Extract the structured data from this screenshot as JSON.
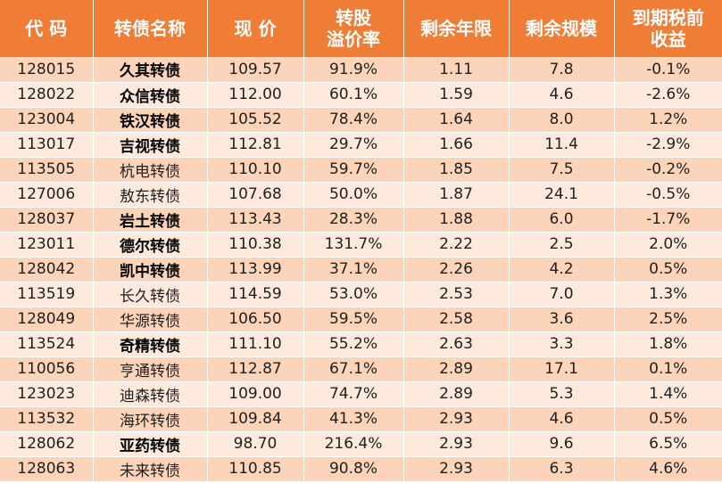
{
  "headers": [
    [
      "代 码"
    ],
    [
      "转债名称"
    ],
    [
      "现 价"
    ],
    [
      "转股",
      "溢价率"
    ],
    [
      "剩余年限"
    ],
    [
      "剩余规模"
    ],
    [
      "到期税前",
      "收益"
    ]
  ],
  "rows": [
    {
      "code": "128015",
      "name": "久其转债",
      "bold": true,
      "price": "109.57",
      "premium": "91.9%",
      "years": "1.11",
      "scale": "7.8",
      "ytm": "-0.1%"
    },
    {
      "code": "128022",
      "name": "众信转债",
      "bold": true,
      "price": "112.00",
      "premium": "60.1%",
      "years": "1.59",
      "scale": "4.6",
      "ytm": "-2.6%"
    },
    {
      "code": "123004",
      "name": "铁汉转债",
      "bold": true,
      "price": "105.52",
      "premium": "78.4%",
      "years": "1.64",
      "scale": "8.0",
      "ytm": "1.2%"
    },
    {
      "code": "113017",
      "name": "吉视转债",
      "bold": true,
      "price": "112.81",
      "premium": "29.7%",
      "years": "1.66",
      "scale": "11.4",
      "ytm": "-2.9%"
    },
    {
      "code": "113505",
      "name": "杭电转债",
      "bold": false,
      "price": "110.10",
      "premium": "59.7%",
      "years": "1.85",
      "scale": "7.5",
      "ytm": "-0.2%"
    },
    {
      "code": "127006",
      "name": "敖东转债",
      "bold": false,
      "price": "107.68",
      "premium": "50.0%",
      "years": "1.87",
      "scale": "24.1",
      "ytm": "-0.5%"
    },
    {
      "code": "128037",
      "name": "岩土转债",
      "bold": true,
      "price": "113.43",
      "premium": "28.3%",
      "years": "1.88",
      "scale": "6.0",
      "ytm": "-1.7%"
    },
    {
      "code": "123011",
      "name": "德尔转债",
      "bold": true,
      "price": "110.38",
      "premium": "131.7%",
      "years": "2.22",
      "scale": "2.5",
      "ytm": "2.0%"
    },
    {
      "code": "128042",
      "name": "凯中转债",
      "bold": true,
      "price": "113.99",
      "premium": "37.1%",
      "years": "2.26",
      "scale": "4.2",
      "ytm": "0.5%"
    },
    {
      "code": "113519",
      "name": "长久转债",
      "bold": false,
      "price": "114.59",
      "premium": "53.0%",
      "years": "2.53",
      "scale": "7.0",
      "ytm": "1.3%"
    },
    {
      "code": "128049",
      "name": "华源转债",
      "bold": false,
      "price": "106.50",
      "premium": "59.5%",
      "years": "2.58",
      "scale": "3.6",
      "ytm": "2.5%"
    },
    {
      "code": "113524",
      "name": "奇精转债",
      "bold": true,
      "price": "111.10",
      "premium": "55.2%",
      "years": "2.63",
      "scale": "3.3",
      "ytm": "1.8%"
    },
    {
      "code": "110056",
      "name": "亨通转债",
      "bold": false,
      "price": "112.87",
      "premium": "67.1%",
      "years": "2.89",
      "scale": "17.1",
      "ytm": "0.1%"
    },
    {
      "code": "123023",
      "name": "迪森转债",
      "bold": false,
      "price": "109.00",
      "premium": "74.7%",
      "years": "2.89",
      "scale": "5.3",
      "ytm": "1.4%"
    },
    {
      "code": "113532",
      "name": "海环转债",
      "bold": false,
      "price": "109.84",
      "premium": "41.3%",
      "years": "2.93",
      "scale": "4.6",
      "ytm": "0.5%"
    },
    {
      "code": "128062",
      "name": "亚药转债",
      "bold": true,
      "price": "98.70",
      "premium": "216.4%",
      "years": "2.93",
      "scale": "9.6",
      "ytm": "6.5%"
    },
    {
      "code": "128063",
      "name": "未来转债",
      "bold": false,
      "price": "110.85",
      "premium": "90.8%",
      "years": "2.93",
      "scale": "6.3",
      "ytm": "4.6%"
    }
  ],
  "colors": {
    "header_bg": "#ef7d36",
    "header_text": "#ffffff",
    "row_dark": "#fbd4b9",
    "row_light": "#fdeadc"
  }
}
